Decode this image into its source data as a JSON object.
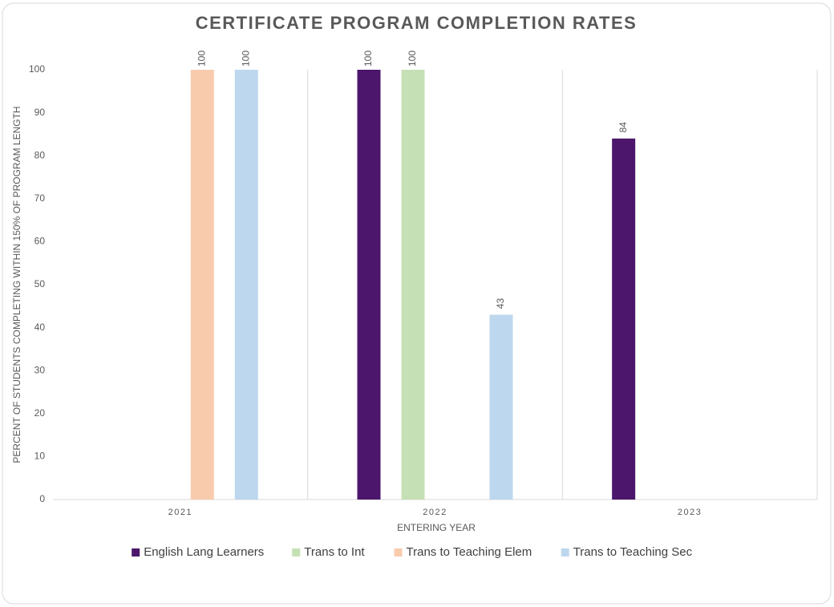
{
  "chart_data": {
    "type": "bar",
    "title": "CERTIFICATE PROGRAM COMPLETION RATES",
    "x_label": "ENTERING YEAR",
    "y_label": "PERCENT OF  STUDENTS COMPLETING WITHIN 150% OF PROGRAM LENGTH",
    "categories": [
      "2021",
      "2022",
      "2023"
    ],
    "series": [
      {
        "name": "English Lang Learners",
        "color": "#4b166b",
        "values": [
          null,
          100,
          84
        ]
      },
      {
        "name": "Trans to Int",
        "color": "#c5e0b4",
        "values": [
          null,
          100,
          null
        ]
      },
      {
        "name": "Trans to Teaching Elem",
        "color": "#f8cbad",
        "values": [
          100,
          null,
          null
        ]
      },
      {
        "name": "Trans to Teaching Sec",
        "color": "#bdd7ee",
        "values": [
          100,
          43,
          null
        ]
      }
    ],
    "ylim": [
      0,
      100
    ],
    "yticks": [
      0,
      10,
      20,
      30,
      40,
      50,
      60,
      70,
      80,
      90,
      100
    ],
    "legend": "bottom"
  }
}
